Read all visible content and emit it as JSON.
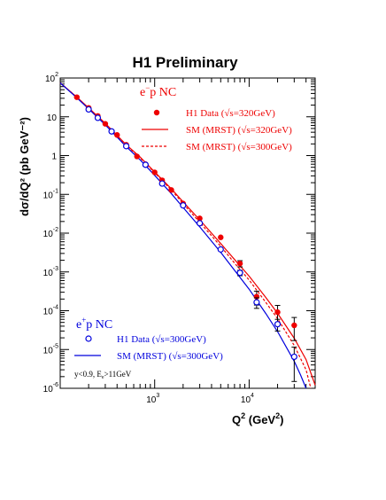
{
  "chart_data": {
    "type": "scatter",
    "title": "H1 Preliminary",
    "xlabel": "Q",
    "xlabel_sup": "2",
    "xlabel_unit_open": " (GeV",
    "xlabel_unit_sup": "2",
    "xlabel_unit_close": ")",
    "ylabel": "dσ/dQ² (pb GeV⁻²)",
    "xscale": "log",
    "yscale": "log",
    "xlim": [
      100,
      50000
    ],
    "ylim": [
      1e-06,
      100
    ],
    "x_tick_labels": [
      {
        "value": 1000,
        "base": "10",
        "exp": "3"
      },
      {
        "value": 10000,
        "base": "10",
        "exp": "4"
      }
    ],
    "y_tick_labels": [
      {
        "value": 100,
        "base": "10",
        "exp": "2"
      },
      {
        "value": 10,
        "base": "10",
        "exp": ""
      },
      {
        "value": 1,
        "base": "1",
        "exp": ""
      },
      {
        "value": 0.1,
        "base": "10",
        "exp": "-1"
      },
      {
        "value": 0.01,
        "base": "10",
        "exp": "-2"
      },
      {
        "value": 0.001,
        "base": "10",
        "exp": "-3"
      },
      {
        "value": 0.0001,
        "base": "10",
        "exp": "-4"
      },
      {
        "value": 1e-05,
        "base": "10",
        "exp": "-5"
      },
      {
        "value": 1e-06,
        "base": "10",
        "exp": "-6"
      }
    ],
    "grid": false,
    "colors": {
      "em": "#ee0000",
      "ep": "#0000dd",
      "axis": "#000000"
    },
    "legend_em": {
      "title_base": "e",
      "title_sup": "−",
      "title_rest": "p NC",
      "entries": [
        "H1 Data (√s=320GeV)",
        "SM (MRST) (√s=320GeV)",
        "SM (MRST) (√s=300GeV)"
      ]
    },
    "legend_ep": {
      "title_base": "e",
      "title_sup": "+",
      "title_rest": "p NC",
      "entries": [
        "H1 Data (√s=300GeV)",
        "SM (MRST) (√s=300GeV)"
      ]
    },
    "cuts_note": "y<0.9, E",
    "cuts_sub": "e",
    "cuts_rest": ">11GeV",
    "series": [
      {
        "name": "H1 Data (√s=320GeV)",
        "kind": "points",
        "marker": "filled-circle",
        "color": "#ee0000",
        "x": [
          150,
          200,
          250,
          300,
          400,
          500,
          650,
          800,
          1000,
          1200,
          1500,
          2000,
          3000,
          5000,
          8000,
          12000,
          20000,
          30000
        ],
        "y": [
          32,
          17,
          10.5,
          6.6,
          3.4,
          1.9,
          0.95,
          0.6,
          0.37,
          0.23,
          0.13,
          0.058,
          0.024,
          0.0078,
          0.00165,
          0.00023,
          9.2e-05,
          4.2e-05
        ],
        "yerr": [
          0,
          0,
          0,
          0,
          0,
          0,
          0,
          0,
          0,
          0,
          0,
          0,
          0,
          0,
          0.0003,
          9e-05,
          4.5e-05,
          2.5e-05
        ]
      },
      {
        "name": "H1 Data (√s=300GeV)",
        "kind": "points",
        "marker": "open-circle",
        "color": "#0000dd",
        "x": [
          200,
          250,
          350,
          500,
          800,
          1200,
          2000,
          3000,
          5000,
          8000,
          12000,
          20000,
          30000
        ],
        "y": [
          15.5,
          9.4,
          4.2,
          1.75,
          0.58,
          0.19,
          0.052,
          0.018,
          0.0038,
          0.00095,
          0.000165,
          4.5e-05,
          6.5e-06
        ],
        "yerr": [
          0,
          0,
          0,
          0,
          0,
          0,
          0,
          0,
          0,
          0.00015,
          5e-05,
          1.5e-05,
          5e-06
        ]
      },
      {
        "name": "SM (MRST) (√s=320GeV)",
        "kind": "line",
        "dash": "solid",
        "color": "#ee0000",
        "x": [
          100,
          150,
          200,
          300,
          500,
          700,
          1000,
          1500,
          2000,
          3000,
          5000,
          7000,
          10000,
          15000,
          20000,
          30000,
          40000,
          50000
        ],
        "y": [
          75,
          32,
          17,
          6.8,
          1.9,
          0.92,
          0.38,
          0.14,
          0.064,
          0.022,
          0.0054,
          0.0021,
          0.00078,
          0.00022,
          8.59e-05,
          1.96e-05,
          5.5e-06,
          1.2e-06
        ]
      },
      {
        "name": "SM (MRST) (√s=300GeV)",
        "kind": "line",
        "dash": "dashed",
        "color": "#ee0000",
        "x": [
          100,
          150,
          200,
          300,
          500,
          700,
          1000,
          1500,
          2000,
          3000,
          5000,
          7000,
          10000,
          15000,
          20000,
          30000,
          40000,
          45000
        ],
        "y": [
          75,
          32,
          16.8,
          6.6,
          1.85,
          0.88,
          0.36,
          0.13,
          0.058,
          0.019,
          0.0046,
          0.0017,
          0.00062,
          0.000165,
          6.25e-05,
          1.28e-05,
          3e-06,
          1e-06
        ]
      },
      {
        "name": "SM (MRST) (√s=300GeV)",
        "kind": "line",
        "dash": "solid",
        "color": "#0000dd",
        "x": [
          100,
          150,
          200,
          300,
          500,
          700,
          1000,
          1500,
          2000,
          3000,
          5000,
          7000,
          10000,
          15000,
          20000,
          30000,
          35000,
          40000
        ],
        "y": [
          75,
          31,
          16,
          6.2,
          1.7,
          0.78,
          0.31,
          0.105,
          0.046,
          0.0145,
          0.0032,
          0.0011,
          0.00036,
          8.5e-05,
          2.9e-05,
          5e-06,
          2.2e-06,
          1e-06
        ]
      }
    ]
  }
}
